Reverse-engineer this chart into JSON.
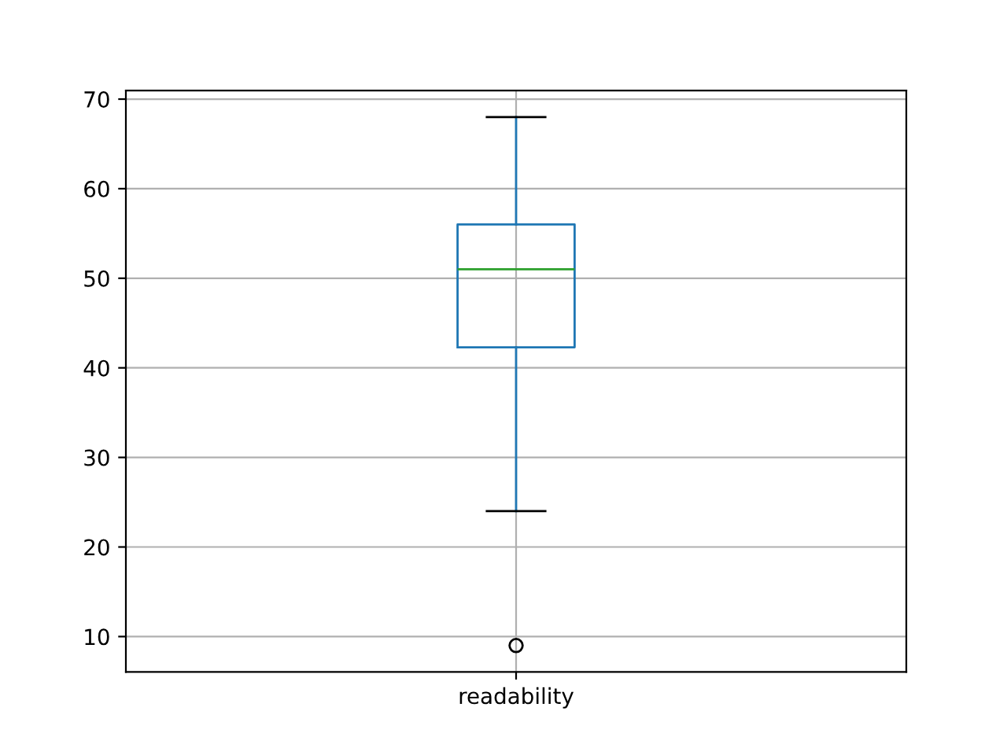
{
  "chart_data": {
    "type": "box",
    "categories": [
      "readability"
    ],
    "boxes": [
      {
        "low": 24,
        "q1": 42.3,
        "median": 51,
        "q3": 56,
        "high": 68,
        "outliers": [
          9
        ]
      }
    ],
    "color": "#1f77b4",
    "ylim": [
      6.05,
      70.95
    ],
    "yticks": [
      10,
      20,
      30,
      40,
      50,
      60,
      70
    ],
    "grid": true
  }
}
